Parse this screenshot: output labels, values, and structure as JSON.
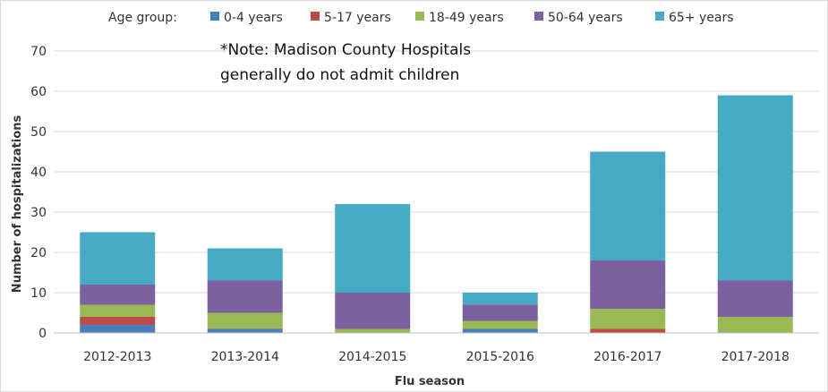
{
  "chart_data": {
    "type": "bar",
    "stacked": true,
    "title": "",
    "xlabel": "Flu season",
    "ylabel": "Number of hospitalizations",
    "ylim": [
      0,
      70
    ],
    "yticks": [
      0,
      10,
      20,
      30,
      40,
      50,
      60,
      70
    ],
    "grid": true,
    "legend": {
      "title": "Age group:",
      "placement": "top"
    },
    "categories": [
      "2012-2013",
      "2013-2014",
      "2014-2015",
      "2015-2016",
      "2016-2017",
      "2017-2018"
    ],
    "series": [
      {
        "name": "0-4 years",
        "color": "#4a7ebb",
        "values": [
          2,
          1,
          0,
          1,
          0,
          0
        ]
      },
      {
        "name": "5-17 years",
        "color": "#be4b48",
        "values": [
          2,
          0,
          0,
          0,
          1,
          0
        ]
      },
      {
        "name": "18-49 years",
        "color": "#98b954",
        "values": [
          3,
          4,
          1,
          2,
          5,
          4
        ]
      },
      {
        "name": "50-64 years",
        "color": "#7d60a0",
        "values": [
          5,
          8,
          9,
          4,
          12,
          9
        ]
      },
      {
        "name": "65+ years",
        "color": "#46aac5",
        "values": [
          13,
          8,
          22,
          3,
          27,
          46
        ]
      }
    ],
    "annotation": {
      "line1": "*Note: Madison County Hospitals",
      "line2": "generally do not admit children"
    }
  }
}
